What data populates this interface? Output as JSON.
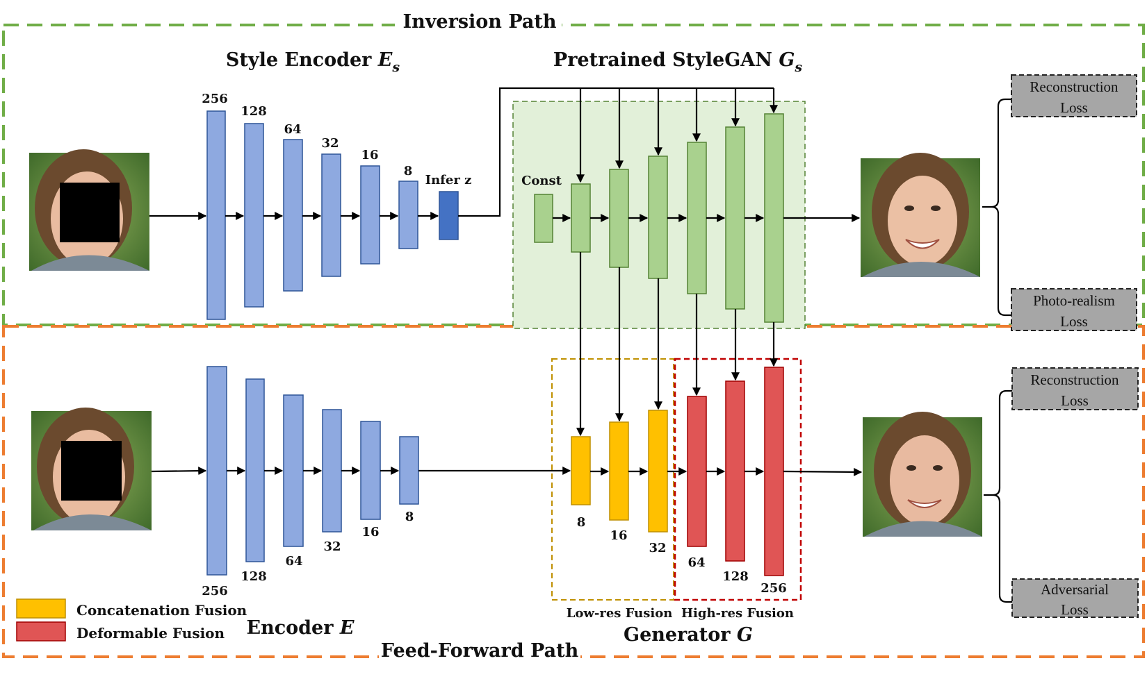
{
  "paths": {
    "inversion": "Inversion Path",
    "feed_forward": "Feed-Forward Path"
  },
  "top": {
    "style_encoder_label": "Style Encoder",
    "style_encoder_symbol": "E",
    "style_encoder_sub": "s",
    "stylegan_label": "Pretrained StyleGAN",
    "stylegan_symbol": "G",
    "stylegan_sub": "s",
    "encoder_dims": [
      "256",
      "128",
      "64",
      "32",
      "16",
      "8"
    ],
    "infer_label": "Infer z",
    "const_label": "Const",
    "losses": [
      {
        "line1": "Reconstruction",
        "line2": "Loss"
      },
      {
        "line1": "Photo-realism",
        "line2": "Loss"
      }
    ]
  },
  "bottom": {
    "encoder_label": "Encoder",
    "encoder_symbol": "E",
    "generator_label": "Generator",
    "generator_symbol": "G",
    "encoder_dims": [
      "256",
      "128",
      "64",
      "32",
      "16",
      "8"
    ],
    "generator_dims": [
      "8",
      "16",
      "32",
      "64",
      "128",
      "256"
    ],
    "lowres_label": "Low-res Fusion",
    "highres_label": "High-res Fusion",
    "losses": [
      {
        "line1": "Reconstruction",
        "line2": "Loss"
      },
      {
        "line1": "Adversarial",
        "line2": "Loss"
      }
    ]
  },
  "legend": [
    {
      "label": "Concatenation Fusion",
      "color": "#ffc000"
    },
    {
      "label": "Deformable Fusion",
      "color": "#e05555"
    }
  ],
  "colors": {
    "inversion_border": "#70ad47",
    "feedforward_border": "#ed7d31",
    "encoder_block": "#8ea9e0",
    "stylegan_block": "#a9d18e",
    "lowres_border": "#bf9000",
    "highres_border": "#c00000"
  }
}
